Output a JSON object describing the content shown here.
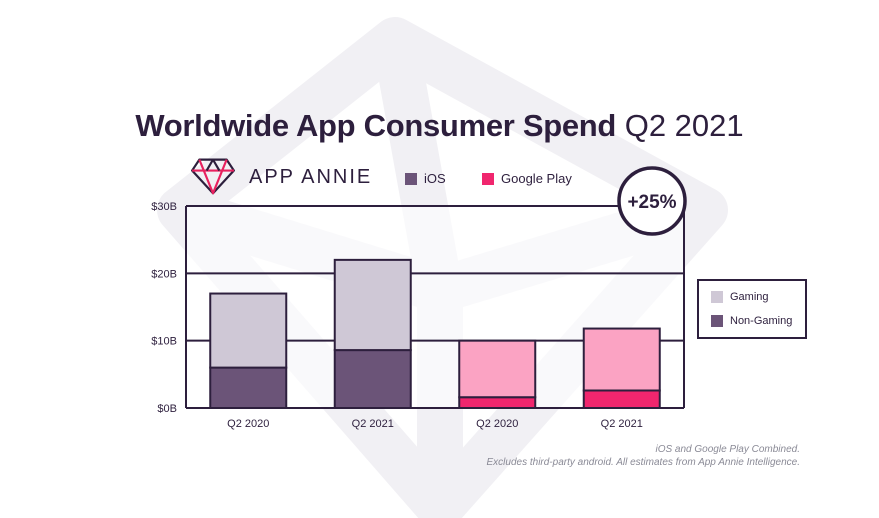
{
  "title_bold": "Worldwide App Consumer Spend",
  "title_light": "Q2 2021",
  "brand": {
    "name": "APP ANNIE"
  },
  "legend_top": [
    {
      "label": "iOS",
      "color": "#6b5478"
    },
    {
      "label": "Google Play",
      "color": "#f0266e"
    }
  ],
  "legend_side": [
    {
      "label": "Gaming",
      "color": "#cfc8d6"
    },
    {
      "label": "Non-Gaming",
      "color": "#6b5478"
    }
  ],
  "growth_badge": "+25%",
  "footnotes": [
    "iOS and Google Play Combined.",
    "Excludes third-party android. All estimates from App Annie Intelligence."
  ],
  "chart_data": {
    "type": "bar",
    "stacked": true,
    "title": "Worldwide App Consumer Spend Q2 2021",
    "categories": [
      "Q2 2020",
      "Q2 2021",
      "Q2 2020",
      "Q2 2021"
    ],
    "store": [
      "iOS",
      "iOS",
      "Google Play",
      "Google Play"
    ],
    "series": [
      {
        "name": "Non-Gaming",
        "values": [
          6.0,
          8.6,
          1.6,
          2.6
        ],
        "colors": [
          "#6b5478",
          "#6b5478",
          "#f0266e",
          "#f0266e"
        ]
      },
      {
        "name": "Gaming",
        "values": [
          11.0,
          13.4,
          8.4,
          9.2
        ],
        "colors": [
          "#cfc8d6",
          "#cfc8d6",
          "#fba3c3",
          "#fba3c3"
        ]
      }
    ],
    "y_ticks": [
      "$0B",
      "$10B",
      "$20B",
      "$30B"
    ],
    "y_tick_values": [
      0,
      10,
      20,
      30
    ],
    "ylim": [
      0,
      30
    ],
    "grid": true,
    "legend": "right"
  }
}
